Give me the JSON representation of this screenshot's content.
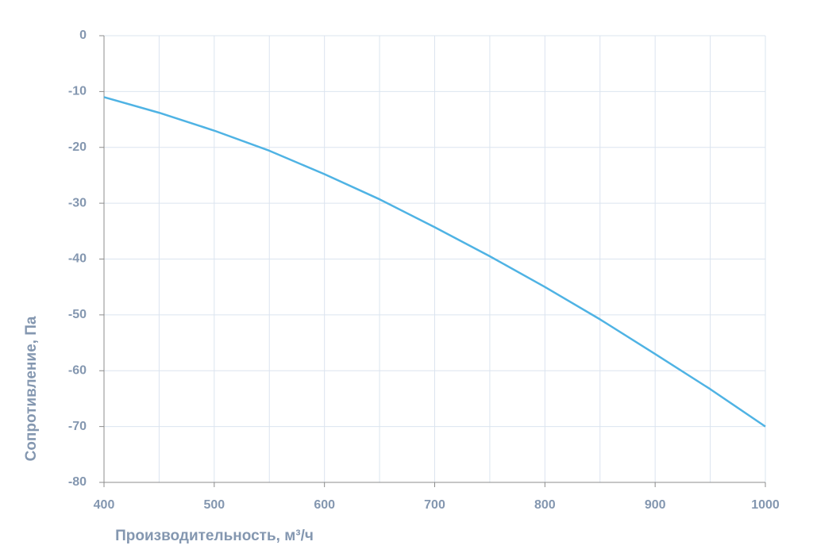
{
  "chart_data": {
    "type": "line",
    "xlabel": "Производительность, м³/ч",
    "ylabel": "Сопротивление, Па",
    "x": [
      400,
      450,
      500,
      550,
      600,
      650,
      700,
      750,
      800,
      850,
      900,
      950,
      1000
    ],
    "series": [
      {
        "color": "#4fb3e4",
        "values": [
          -11,
          -13.8,
          -17,
          -20.6,
          -24.8,
          -29.3,
          -34.3,
          -39.5,
          -45,
          -50.8,
          -57,
          -63.3,
          -70
        ]
      }
    ],
    "xlim": [
      400,
      1000
    ],
    "xticks": [
      400,
      500,
      600,
      700,
      800,
      900,
      1000
    ],
    "xminor_ticks": [
      450,
      550,
      650,
      750,
      850,
      950
    ],
    "ylim": [
      -80,
      0
    ],
    "yticks": [
      0,
      -10,
      -20,
      -30,
      -40,
      -50,
      -60,
      -70,
      -80
    ],
    "grid": true
  }
}
